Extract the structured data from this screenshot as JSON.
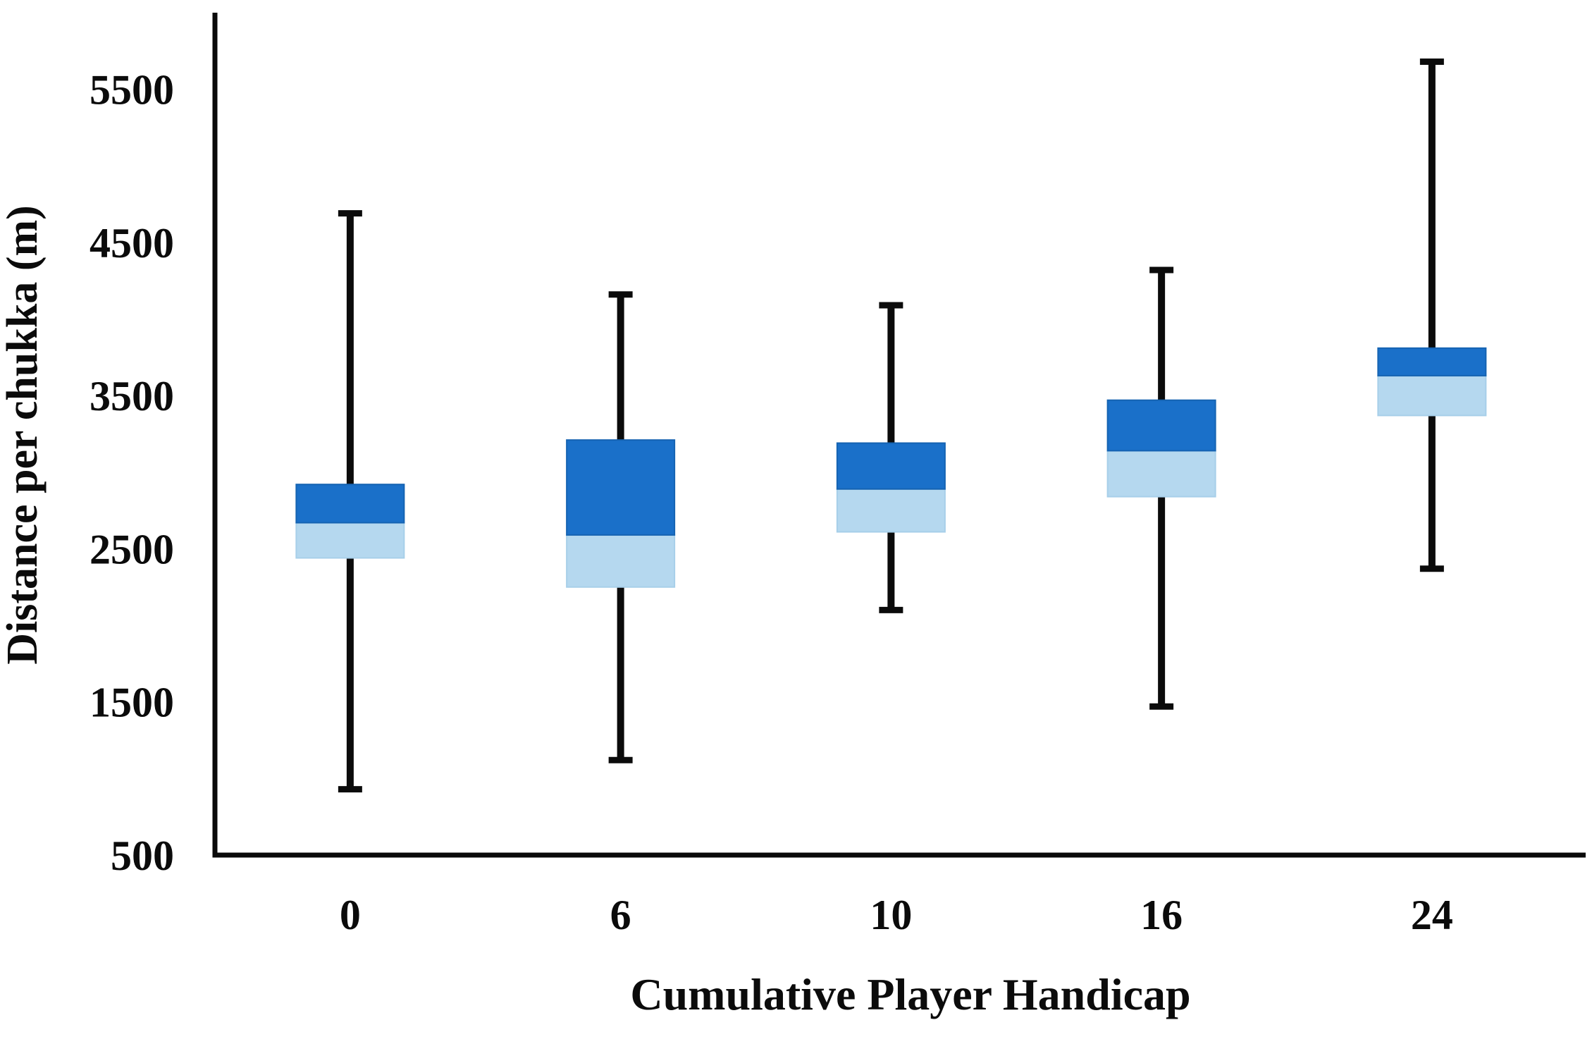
{
  "chart_data": {
    "type": "boxplot",
    "title": "",
    "xlabel": "Cumulative Player Handicap",
    "ylabel": "Distance per chukka (m)",
    "categories": [
      "0",
      "6",
      "10",
      "16",
      "24"
    ],
    "y_ticks": [
      500,
      1500,
      2500,
      3500,
      4500,
      5500
    ],
    "ylim": [
      500,
      6000
    ],
    "grid": "off",
    "legend": "none",
    "series": [
      {
        "category": "0",
        "min": 930,
        "q1": 2440,
        "median": 2670,
        "q3": 2920,
        "max": 4690
      },
      {
        "category": "6",
        "min": 1120,
        "q1": 2250,
        "median": 2590,
        "q3": 3210,
        "max": 4160
      },
      {
        "category": "10",
        "min": 2100,
        "q1": 2610,
        "median": 2890,
        "q3": 3190,
        "max": 4090
      },
      {
        "category": "16",
        "min": 1470,
        "q1": 2840,
        "median": 3140,
        "q3": 3470,
        "max": 4320
      },
      {
        "category": "24",
        "min": 2370,
        "q1": 3370,
        "median": 3630,
        "q3": 3810,
        "max": 5680
      }
    ],
    "colors": {
      "box_upper": "#1A70C9",
      "box_upper_border": "#1563B2",
      "box_lower": "#B5D8EF",
      "box_lower_border": "#A7CFE9",
      "whisker": "#0b0b0b",
      "axis": "#0a0a0a",
      "text": "#0b0b0b"
    }
  }
}
